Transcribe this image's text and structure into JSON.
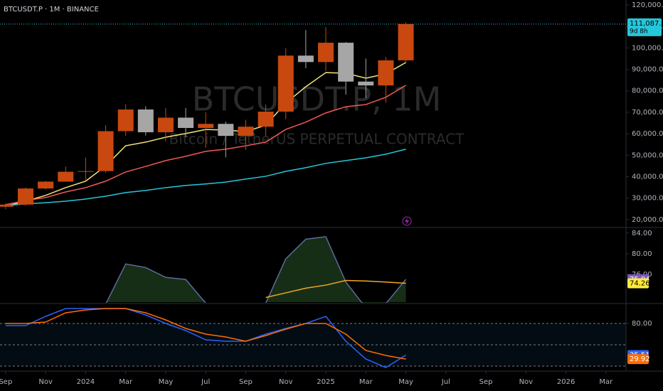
{
  "chart_data": [
    {
      "type": "candlestick",
      "title": "BTCUSDT.P · 1M · BINANCE",
      "watermark": "BTCUSDT.P, 1M",
      "subtitle": "Bitcoin / TetherUS PERPETUAL CONTRACT",
      "x": [
        0,
        1,
        2,
        3,
        4,
        5,
        6,
        7,
        8,
        9,
        10,
        11,
        12,
        13,
        14,
        15,
        16,
        17,
        18,
        19,
        20
      ],
      "xlim": [
        -0.28,
        31.0
      ],
      "open": [
        26000,
        27000,
        34500,
        37700,
        42300,
        42600,
        61200,
        71300,
        60700,
        67500,
        62700,
        64600,
        59000,
        63300,
        70300,
        96400,
        93400,
        102400,
        84300,
        82500,
        94200
      ],
      "high": [
        27500,
        35000,
        38000,
        44700,
        48900,
        64000,
        73800,
        72800,
        72000,
        72000,
        70000,
        65600,
        66500,
        73600,
        99800,
        108300,
        109600,
        102700,
        95000,
        95800,
        111900
      ],
      "low": [
        24900,
        26500,
        34000,
        37600,
        38500,
        41800,
        59000,
        59200,
        56500,
        58400,
        53500,
        49000,
        52500,
        58900,
        66800,
        90500,
        89200,
        78200,
        76600,
        74500,
        93300
      ],
      "close": [
        27000,
        34500,
        37700,
        42300,
        42600,
        61200,
        71300,
        60700,
        67500,
        62700,
        64600,
        59000,
        63300,
        70300,
        96400,
        93400,
        102400,
        84300,
        82500,
        94200,
        111087.1
      ],
      "up_color": "#c8480f",
      "down_color": "#a6a6a6",
      "last_label": "111,087.1",
      "countdown": "9d 8h",
      "last_color": "#26c6da",
      "series": [
        {
          "color": "#f5e37a",
          "values": [
            26300,
            28600,
            31300,
            34900,
            37900,
            45000,
            54400,
            56100,
            58400,
            60100,
            62000,
            61700,
            61000,
            64000,
            74300,
            81900,
            88500,
            88200,
            85900,
            87900,
            93200
          ]
        },
        {
          "color": "#f05a5a",
          "values": [
            27000,
            28900,
            30300,
            32900,
            34900,
            37900,
            42200,
            44800,
            47500,
            49500,
            51800,
            52800,
            54400,
            56100,
            62000,
            65400,
            69700,
            72600,
            73600,
            77000,
            82600
          ]
        },
        {
          "color": "#26c6da",
          "values": [
            26600,
            27300,
            27900,
            28600,
            29600,
            30900,
            32600,
            33600,
            34900,
            35900,
            36600,
            37500,
            38900,
            40200,
            42500,
            44200,
            46200,
            47500,
            48800,
            50500,
            52800
          ]
        }
      ],
      "ylim": [
        17000,
        122300
      ],
      "yticks": [
        {
          "value": 120000,
          "label": "120,000.0"
        },
        {
          "value": 110000,
          "label": "110,000.0"
        },
        {
          "value": 100000,
          "label": "100,000.0"
        },
        {
          "value": 90000,
          "label": "90,000.0"
        },
        {
          "value": 80000,
          "label": "80,000.0"
        },
        {
          "value": 70000,
          "label": "70,000.0"
        },
        {
          "value": 60000,
          "label": "60,000.0"
        },
        {
          "value": 50000,
          "label": "50,000.0"
        },
        {
          "value": 40000,
          "label": "40,000.0"
        },
        {
          "value": 30000,
          "label": "30,000.0"
        },
        {
          "value": 20000,
          "label": "20,000.0"
        }
      ]
    },
    {
      "type": "line",
      "x": [
        0,
        1,
        2,
        3,
        4,
        5,
        6,
        7,
        8,
        9,
        10,
        11,
        12,
        13,
        14,
        15,
        16,
        17,
        18,
        19,
        20
      ],
      "xlim": [
        -0.28,
        31.0
      ],
      "ylim": [
        70.6,
        84.8
      ],
      "yticks": [
        {
          "value": 84,
          "label": "84.00"
        },
        {
          "value": 80,
          "label": "80.00"
        },
        {
          "value": 76,
          "label": "76.00"
        }
      ],
      "series": [
        {
          "color": "#5d6b9c",
          "fill": "#1c3a1c",
          "last_label": "75.04",
          "label_color": "#7e57c2",
          "values": [
            null,
            null,
            null,
            null,
            null,
            70.2,
            78.0,
            77.3,
            75.4,
            75.0,
            70.4,
            null,
            null,
            70.4,
            79.0,
            82.8,
            83.3,
            74.5,
            69.5,
            70.3,
            75.04
          ]
        },
        {
          "color": "#f5a623",
          "last_label": "74.26",
          "label_color": "#ffeb3b",
          "values": [
            null,
            null,
            null,
            null,
            null,
            null,
            null,
            null,
            null,
            null,
            null,
            null,
            null,
            71.5,
            72.4,
            73.3,
            73.9,
            74.8,
            74.7,
            74.5,
            74.26
          ]
        }
      ]
    },
    {
      "type": "line",
      "x": [
        0,
        1,
        2,
        3,
        4,
        5,
        6,
        7,
        8,
        9,
        10,
        11,
        12,
        13,
        14,
        15,
        16,
        17,
        18,
        19,
        20
      ],
      "xlim": [
        -0.28,
        31.0
      ],
      "ylim": [
        15,
        107
      ],
      "yticks": [
        {
          "value": 80,
          "label": "80.00"
        }
      ],
      "hlines": [
        80,
        50,
        20
      ],
      "band": [
        20,
        80
      ],
      "series": [
        {
          "color": "#2962ff",
          "last_label": "35.51",
          "label_color": "#2962ff",
          "values": [
            77,
            77,
            90,
            101,
            101,
            101,
            101,
            92,
            80,
            70,
            57,
            55,
            55,
            65,
            73,
            80,
            90,
            55,
            30,
            18,
            35.51
          ]
        },
        {
          "color": "#ff6d00",
          "last_label": "29.92",
          "label_color": "#ff6d00",
          "values": [
            80,
            80,
            82,
            95,
            99,
            101,
            101,
            95,
            85,
            73,
            65,
            61,
            55,
            63,
            72,
            80,
            80,
            65,
            42,
            35,
            29.92
          ]
        }
      ],
      "xticks": [
        {
          "value": 0,
          "label": "Sep"
        },
        {
          "value": 2,
          "label": "Nov"
        },
        {
          "value": 4,
          "label": "2024"
        },
        {
          "value": 6,
          "label": "Mar"
        },
        {
          "value": 8,
          "label": "May"
        },
        {
          "value": 10,
          "label": "Jul"
        },
        {
          "value": 12,
          "label": "Sep"
        },
        {
          "value": 14,
          "label": "Nov"
        },
        {
          "value": 16,
          "label": "2025"
        },
        {
          "value": 18,
          "label": "Mar"
        },
        {
          "value": 20,
          "label": "May"
        },
        {
          "value": 22,
          "label": "Jul"
        },
        {
          "value": 24,
          "label": "Sep"
        },
        {
          "value": 26,
          "label": "Nov"
        },
        {
          "value": 28,
          "label": "2026"
        },
        {
          "value": 30,
          "label": "Mar"
        }
      ]
    }
  ]
}
